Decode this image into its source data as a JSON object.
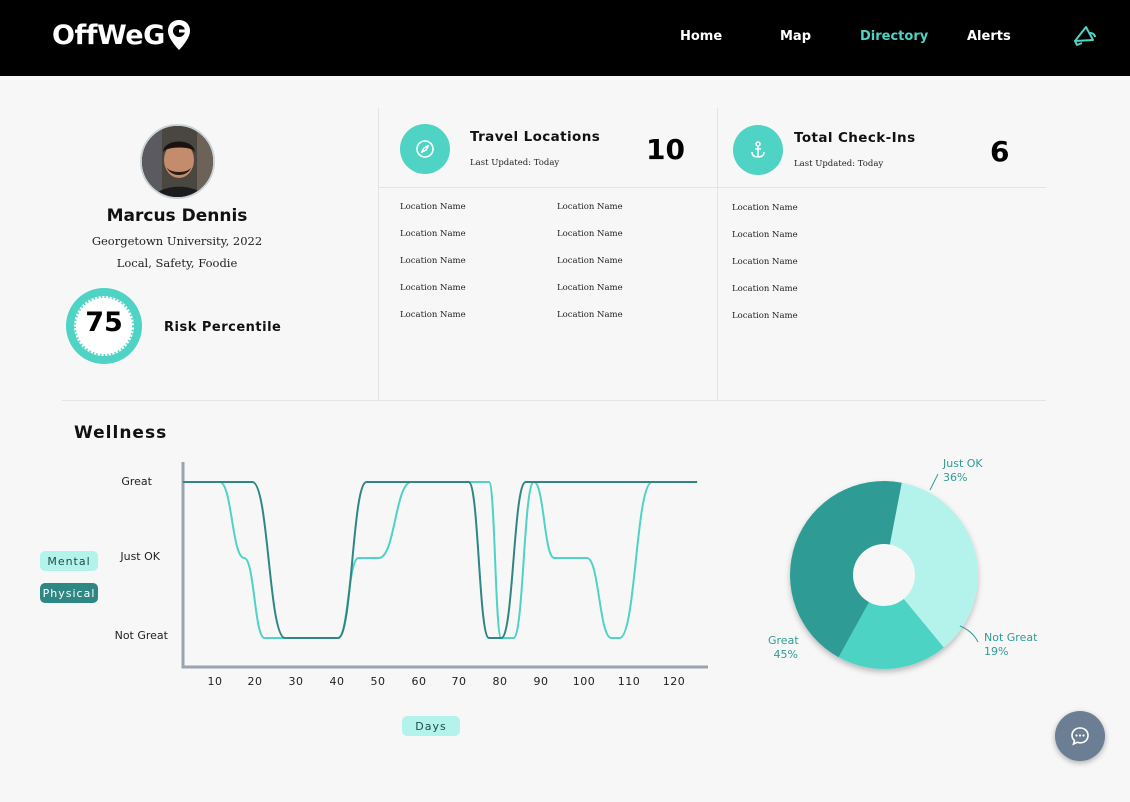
{
  "header": {
    "logo_text": "OffWeG",
    "nav": [
      "Home",
      "Map",
      "Directory",
      "Alerts"
    ],
    "active_nav": "Directory",
    "accent_color": "#4ed3c4",
    "right_icon": "megaphone-icon"
  },
  "profile": {
    "name": "Marcus Dennis",
    "school": "Georgetown University, 2022",
    "tags": "Local, Safety, Foodie",
    "risk_value": "75",
    "risk_label": "Risk Percentile"
  },
  "travel": {
    "title": "Travel Locations",
    "updated": "Last Updated: Today",
    "count": "10",
    "icon": "compass-icon",
    "locations_col1": [
      "Location Name",
      "Location Name",
      "Location Name",
      "Location Name",
      "Location Name"
    ],
    "locations_col2": [
      "Location Name",
      "Location Name",
      "Location Name",
      "Location Name",
      "Location Name"
    ]
  },
  "checkins": {
    "title": "Total Check-Ins",
    "updated": "Last Updated: Today",
    "count": "6",
    "icon": "anchor-icon",
    "locations": [
      "Location Name",
      "Location Name",
      "Location Name",
      "Location Name",
      "Location Name"
    ]
  },
  "wellness": {
    "title": "Wellness",
    "legend_mental": "Mental",
    "legend_physical": "Physical",
    "x_axis_label": "Days"
  },
  "chart_data": [
    {
      "type": "line",
      "x": [
        0,
        10,
        20,
        30,
        40,
        50,
        60,
        70,
        80,
        90,
        100,
        110,
        120,
        125
      ],
      "y_categories": [
        "Not Great",
        "Just OK",
        "Great"
      ],
      "xlabel": "Days",
      "ylabel": "",
      "x_ticks": [
        "10",
        "20",
        "30",
        "40",
        "50",
        "60",
        "70",
        "80",
        "90",
        "100",
        "110",
        "120"
      ],
      "series": [
        {
          "name": "Mental",
          "color": "#4ed3c4",
          "points": [
            [
              0,
              2
            ],
            [
              9,
              2
            ],
            [
              15,
              1
            ],
            [
              20,
              0
            ],
            [
              38,
              0
            ],
            [
              43,
              1
            ],
            [
              48,
              1
            ],
            [
              56,
              2
            ],
            [
              75,
              2
            ],
            [
              78,
              0
            ],
            [
              81,
              0
            ],
            [
              86,
              2
            ],
            [
              91,
              1
            ],
            [
              99,
              1
            ],
            [
              105,
              0
            ],
            [
              107,
              0
            ],
            [
              115,
              2
            ],
            [
              126,
              2
            ]
          ]
        },
        {
          "name": "Physical",
          "color": "#2e8783",
          "points": [
            [
              0,
              2
            ],
            [
              17,
              2
            ],
            [
              25,
              0
            ],
            [
              38,
              0
            ],
            [
              45,
              2
            ],
            [
              70,
              2
            ],
            [
              75,
              0
            ],
            [
              78,
              0
            ],
            [
              84,
              2
            ],
            [
              126,
              2
            ]
          ]
        }
      ]
    },
    {
      "type": "pie",
      "slices": [
        {
          "label": "Just OK",
          "value": 36,
          "display": "36%",
          "color": "#b4f3ec"
        },
        {
          "label": "Not Great",
          "value": 19,
          "display": "19%",
          "color": "#4ed3c4"
        },
        {
          "label": "Great",
          "value": 45,
          "display": "45%",
          "color": "#2f9c95"
        }
      ]
    }
  ],
  "chat_button_icon": "chat-bubble-icon"
}
